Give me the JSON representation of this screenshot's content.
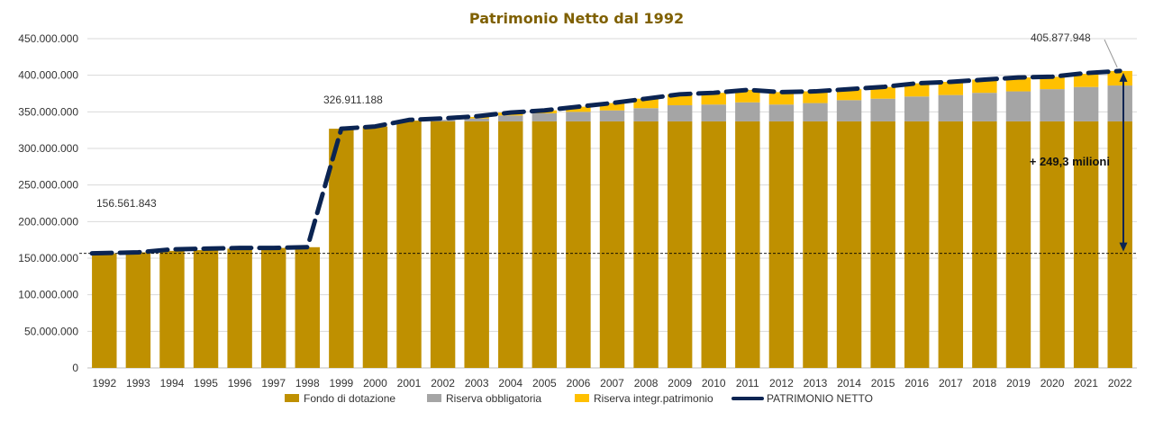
{
  "colors": {
    "fondo": "#BF9000",
    "obbligatoria": "#A5A5A5",
    "integr": "#FFC000",
    "line": "#0B2452",
    "grid": "#D9D9D9",
    "title": "#7F6000",
    "arrow": "#0B2452"
  },
  "chart_data": {
    "type": "bar",
    "stacked": true,
    "title": "Patrimonio Netto dal 1992",
    "xlabel": "",
    "ylabel": "",
    "ylim": [
      0,
      450000000
    ],
    "yticks": [
      0,
      50000000,
      100000000,
      150000000,
      200000000,
      250000000,
      300000000,
      350000000,
      400000000,
      450000000
    ],
    "ytick_labels": [
      "0",
      "50.000.000",
      "100.000.000",
      "150.000.000",
      "200.000.000",
      "250.000.000",
      "300.000.000",
      "350.000.000",
      "400.000.000",
      "450.000.000"
    ],
    "grid": true,
    "legend_position": "bottom",
    "categories": [
      "1992",
      "1993",
      "1994",
      "1995",
      "1996",
      "1997",
      "1998",
      "1999",
      "2000",
      "2001",
      "2002",
      "2003",
      "2004",
      "2005",
      "2006",
      "2007",
      "2008",
      "2009",
      "2010",
      "2011",
      "2012",
      "2013",
      "2014",
      "2015",
      "2016",
      "2017",
      "2018",
      "2019",
      "2020",
      "2021",
      "2022"
    ],
    "series": [
      {
        "name": "Fondo di dotazione",
        "kind": "bar",
        "values": [
          156561843,
          158000000,
          160000000,
          161000000,
          163000000,
          164000000,
          165000000,
          326911188,
          330000000,
          338000000,
          337000000,
          337000000,
          337000000,
          337000000,
          337000000,
          337000000,
          337000000,
          337000000,
          337000000,
          337000000,
          337000000,
          337000000,
          337000000,
          337000000,
          337000000,
          337000000,
          337000000,
          337000000,
          337000000,
          337000000,
          337000000
        ]
      },
      {
        "name": "Riserva obbligatoria",
        "kind": "bar",
        "values": [
          0,
          0,
          0,
          0,
          0,
          0,
          0,
          0,
          0,
          0,
          2000000,
          4000000,
          8000000,
          11000000,
          13000000,
          15000000,
          18000000,
          22000000,
          23000000,
          26000000,
          23000000,
          25000000,
          29000000,
          31000000,
          34000000,
          36000000,
          39000000,
          41000000,
          44000000,
          47000000,
          49000000
        ]
      },
      {
        "name": "Riserva integr.patrimonio",
        "kind": "bar",
        "values": [
          0,
          0,
          0,
          0,
          0,
          0,
          0,
          0,
          0,
          0,
          0,
          2000000,
          4000000,
          4000000,
          7000000,
          10000000,
          13000000,
          15000000,
          16000000,
          17000000,
          17000000,
          16000000,
          15000000,
          16000000,
          18000000,
          18000000,
          18000000,
          19000000,
          17000000,
          18000000,
          19877948
        ]
      },
      {
        "name": "PATRIMONIO  NETTO",
        "kind": "line",
        "values": [
          156561843,
          158000000,
          162000000,
          163000000,
          164000000,
          164000000,
          165000000,
          326911188,
          330000000,
          339000000,
          341000000,
          344000000,
          349000000,
          352000000,
          357000000,
          362000000,
          368000000,
          374000000,
          376000000,
          380000000,
          377000000,
          378000000,
          381000000,
          384000000,
          389000000,
          391000000,
          394000000,
          397000000,
          398000000,
          403000000,
          405877948
        ]
      }
    ],
    "annotations": {
      "first_value": "156.561.843",
      "jump_value": "326.911.188",
      "last_value": "405.877.948",
      "delta_label": "+ 249,3 milioni"
    }
  }
}
